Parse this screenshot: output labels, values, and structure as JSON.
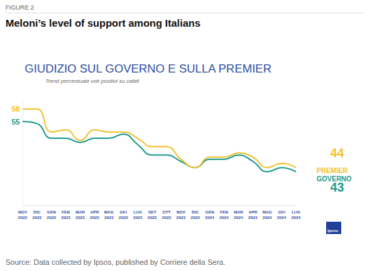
{
  "header": {
    "figure": "FIGURE 2",
    "title": "Meloni’s level of support among Italians"
  },
  "chart_data": {
    "type": "line",
    "title": "GIUDIZIO SUL GOVERNO E SULLA PREMIER",
    "subtitle": "Trend percentuale voti positivi su validi",
    "categories": [
      "NOV 2022",
      "DIC 2022",
      "GEN 2023",
      "FEB 2023",
      "MAR 2023",
      "APR 2023",
      "MAG 2023",
      "GIU 2023",
      "LUG 2023",
      "SET 2023",
      "OTT 2023",
      "NOV 2023",
      "DIC 2023",
      "GEN 2024",
      "FEB 2024",
      "MAR 2024",
      "APR 2024",
      "MAG 2024",
      "GIU 2024",
      "LUG 2024"
    ],
    "series": [
      {
        "name": "PREMIER",
        "color": "#f2c230",
        "values": [
          58,
          58,
          52.5,
          53,
          50.5,
          53,
          52.5,
          52.5,
          51,
          49,
          49,
          46,
          44,
          46.5,
          46.5,
          47.5,
          46.5,
          44,
          45,
          44
        ]
      },
      {
        "name": "GOVERNO",
        "color": "#1f9a8e",
        "values": [
          55,
          54.5,
          51,
          51,
          50,
          51,
          51,
          52,
          49.5,
          47,
          47,
          45.5,
          44,
          46,
          46,
          47,
          45.5,
          43,
          44,
          43
        ]
      }
    ],
    "ylim": [
      35,
      60
    ],
    "grid": false,
    "tick_labels": "x"
  },
  "source": "Source: Data collected by Ipsos, published by Corriere della Sera.",
  "logo": "Ipsos"
}
